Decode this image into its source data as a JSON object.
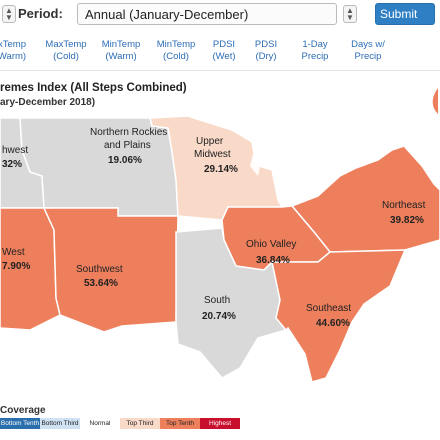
{
  "controls": {
    "period_label": "Period:",
    "period_value": "Annual (January-December)",
    "submit_label": "Submit"
  },
  "tabs": [
    {
      "line1": "xTemp",
      "line2": "Warm)"
    },
    {
      "line1": "MaxTemp",
      "line2": "(Cold)"
    },
    {
      "line1": "MinTemp",
      "line2": "(Warm)"
    },
    {
      "line1": "MinTemp",
      "line2": "(Cold)"
    },
    {
      "line1": "PDSI",
      "line2": "(Wet)"
    },
    {
      "line1": "PDSI",
      "line2": "(Dry)"
    },
    {
      "line1": "1-Day",
      "line2": "Precip"
    },
    {
      "line1": "Days w/",
      "line2": "Precip"
    }
  ],
  "map": {
    "title": "remes Index (All Steps Combined)",
    "subtitle": "ary-December 2018)",
    "regions": [
      {
        "key": "northwest",
        "name_lines": [
          "hwest"
        ],
        "pct": "32%"
      },
      {
        "key": "northern-rockies",
        "name_lines": [
          "Northern Rockies",
          "and Plains"
        ],
        "pct": "19.06%"
      },
      {
        "key": "upper-midwest",
        "name_lines": [
          "Upper",
          "Midwest"
        ],
        "pct": "29.14%"
      },
      {
        "key": "northeast",
        "name_lines": [
          "Northeast"
        ],
        "pct": "39.82%"
      },
      {
        "key": "west",
        "name_lines": [
          "West"
        ],
        "pct": "7.90%"
      },
      {
        "key": "southwest",
        "name_lines": [
          "Southwest"
        ],
        "pct": "53.64%"
      },
      {
        "key": "ohio-valley",
        "name_lines": [
          "Ohio Valley"
        ],
        "pct": "36.84%"
      },
      {
        "key": "south",
        "name_lines": [
          "South"
        ],
        "pct": "20.74%"
      },
      {
        "key": "southeast",
        "name_lines": [
          "Southeast"
        ],
        "pct": "44.60%"
      }
    ]
  },
  "legend": {
    "title": "Coverage",
    "items": [
      {
        "label": "Bottom Tenth",
        "color": "#2a6fab"
      },
      {
        "label": "Bottom Third",
        "color": "#cfe2f3"
      },
      {
        "label": "Normal",
        "color": "#ffffff"
      },
      {
        "label": "Top Third",
        "color": "#f9d9c8"
      },
      {
        "label": "Top Tenth",
        "color": "#ee7f5c"
      },
      {
        "label": "Highest",
        "color": "#c8102e"
      }
    ]
  },
  "colors": {
    "top_tenth": "#ee7f5c",
    "top_third": "#f9d9c8",
    "normal": "#d9d9d9",
    "border": "#ffffff",
    "accent": "#2f7fc4"
  }
}
